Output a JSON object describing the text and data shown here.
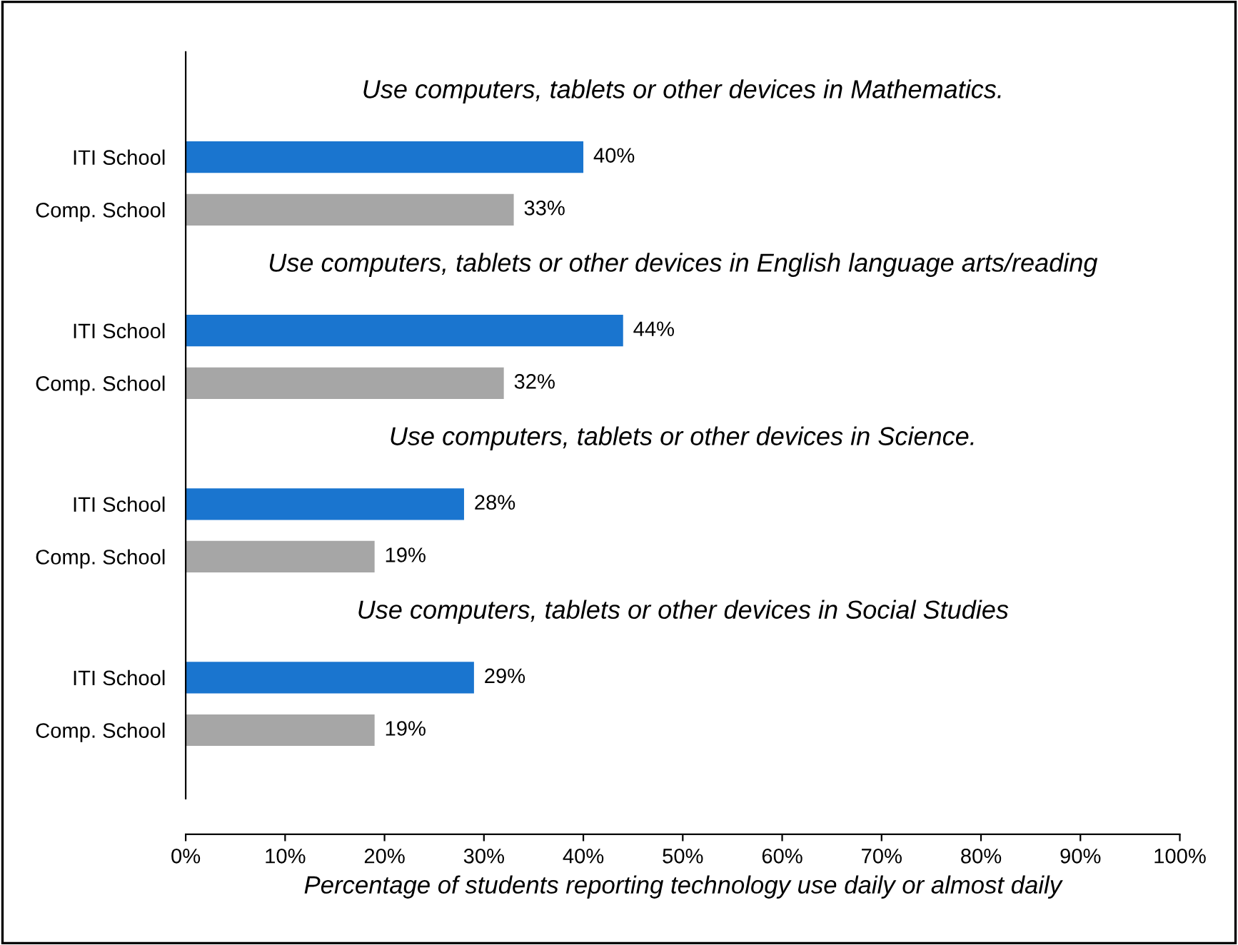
{
  "chart_data": {
    "type": "bar",
    "orientation": "horizontal",
    "categories": [
      "ITI School",
      "Comp. School",
      "ITI School",
      "Comp. School",
      "ITI School",
      "Comp. School",
      "ITI School",
      "Comp. School"
    ],
    "values": [
      40,
      33,
      44,
      32,
      28,
      19,
      29,
      19
    ],
    "value_labels": [
      "40%",
      "33%",
      "44%",
      "32%",
      "28%",
      "19%",
      "29%",
      "19%"
    ],
    "colors": [
      "#1a75cf",
      "#a6a6a6",
      "#1a75cf",
      "#a6a6a6",
      "#1a75cf",
      "#a6a6a6",
      "#1a75cf",
      "#a6a6a6"
    ],
    "xlabel": "Percentage of students reporting technology use daily or almost daily",
    "xlim": [
      0,
      100
    ],
    "xticks": [
      {
        "value": 0,
        "label": "0%"
      },
      {
        "value": 10,
        "label": "10%"
      },
      {
        "value": 20,
        "label": "20%"
      },
      {
        "value": 30,
        "label": "30%"
      },
      {
        "value": 40,
        "label": "40%"
      },
      {
        "value": 50,
        "label": "50%"
      },
      {
        "value": 60,
        "label": "60%"
      },
      {
        "value": 70,
        "label": "70%"
      },
      {
        "value": 80,
        "label": "80%"
      },
      {
        "value": 90,
        "label": "90%"
      },
      {
        "value": 100,
        "label": "100%"
      }
    ],
    "annotations": [
      "Use computers, tablets or other devices in Mathematics.",
      "Use computers, tablets or other devices in English language arts/reading",
      "Use computers, tablets or other devices in Science.",
      "Use computers, tablets or other devices in Social Studies"
    ],
    "grid": false,
    "legend": false
  }
}
